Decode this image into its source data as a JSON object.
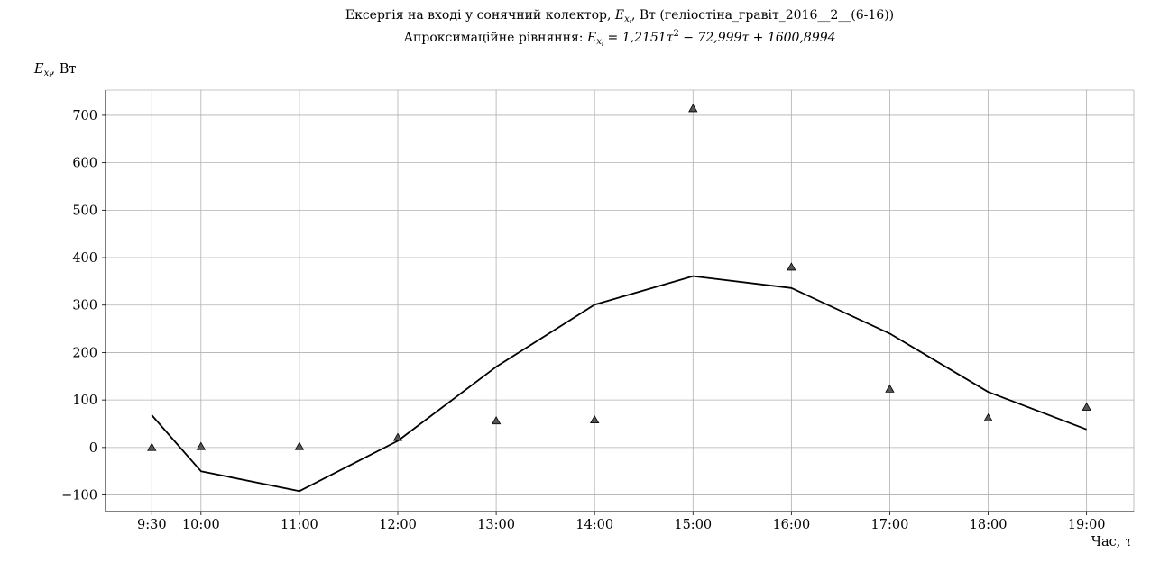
{
  "chart_data": {
    "type": "line",
    "title": "Ексергія на вході у сонячний колектор, E_{x_i}, Вт (геліостіна_гравіт_2016__2__(6-16))",
    "title_parts": {
      "pre": "Ексергія на вході у сонячний колектор, ",
      "sym": "E",
      "sub": "x",
      "subsub": "i",
      "post": ", Вт (геліостіна_гравіт_2016__2__(6-16))"
    },
    "subtitle": "Апроксимаційне рівняння: E_{x_i} = 1,2151τ² − 72,999τ + 1600,8994",
    "subtitle_parts": {
      "pre": "Апроксимаційне рівняння: ",
      "sym": "E",
      "sub": "x",
      "subsub": "i",
      "eq": " = 1,2151τ",
      "sup": "2",
      "rest": " − 72,999τ + 1600,8994"
    },
    "ylabel": "E_{x_i}, Вт",
    "ylabel_parts": {
      "sym": "E",
      "sub": "x",
      "subsub": "i",
      "unit": ", Вт"
    },
    "xlabel": "Час, τ",
    "xlabel_parts": {
      "word": "Час, ",
      "sym": "τ"
    },
    "x_ticks": [
      9.5,
      10,
      11,
      12,
      13,
      14,
      15,
      16,
      17,
      18,
      19
    ],
    "x_tick_labels": [
      "9:30",
      "10:00",
      "11:00",
      "12:00",
      "13:00",
      "14:00",
      "15:00",
      "16:00",
      "17:00",
      "18:00",
      "19:00"
    ],
    "xlim": [
      9.03,
      19.48
    ],
    "y_ticks": [
      -100,
      0,
      100,
      200,
      300,
      400,
      500,
      600,
      700
    ],
    "y_tick_labels": [
      "−100",
      "0",
      "100",
      "200",
      "300",
      "400",
      "500",
      "600",
      "700"
    ],
    "ylim": [
      -135,
      753
    ],
    "grid": true,
    "series": [
      {
        "kind": "line",
        "color": "#000000",
        "x": [
          9.5,
          10,
          11,
          12,
          13,
          14,
          15,
          16,
          17,
          18,
          19
        ],
        "y": [
          68,
          -50,
          -92,
          14,
          170,
          301,
          361,
          336,
          240,
          117,
          38
        ]
      },
      {
        "kind": "scatter",
        "marker": "triangle",
        "color": "#555555",
        "x": [
          9.5,
          10,
          11,
          12,
          13,
          14,
          15,
          16,
          17,
          18,
          19
        ],
        "y": [
          0,
          2,
          2,
          21,
          56,
          58,
          714,
          380,
          123,
          62,
          85
        ]
      }
    ]
  }
}
